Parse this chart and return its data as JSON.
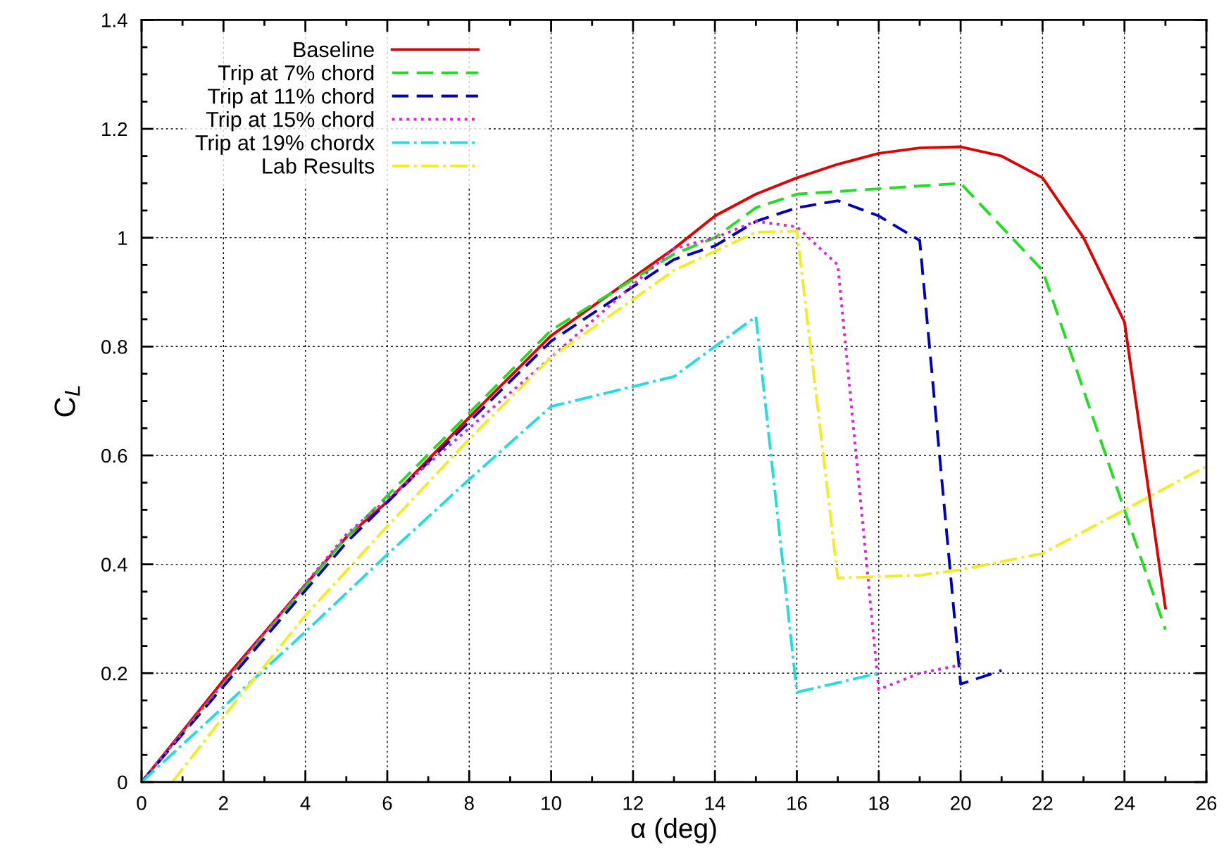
{
  "chart_data": {
    "type": "line",
    "xlabel": "α (deg)",
    "ylabel": "C$_{L}$",
    "xlim": [
      0,
      26
    ],
    "ylim": [
      0,
      1.4
    ],
    "xticks": [
      0,
      2,
      4,
      6,
      8,
      10,
      12,
      14,
      16,
      18,
      20,
      22,
      24,
      26
    ],
    "yticks": [
      0,
      0.2,
      0.4,
      0.6,
      0.8,
      1,
      1.2,
      1.4
    ],
    "grid": true,
    "legend": "top left",
    "marker": "none",
    "series": [
      {
        "name": "Baseline",
        "color": "#e00000",
        "line_style": "solid",
        "x": [
          0,
          2,
          5,
          6,
          8,
          10,
          13,
          14,
          15,
          16,
          17,
          18,
          19,
          20,
          21,
          22,
          23,
          24,
          25
        ],
        "values": [
          0,
          0.187,
          0.45,
          0.515,
          0.67,
          0.82,
          0.98,
          1.04,
          1.08,
          1.11,
          1.135,
          1.155,
          1.165,
          1.167,
          1.15,
          1.11,
          1.0,
          0.845,
          0.32
        ]
      },
      {
        "name": "Trip at 7% chord",
        "color": "#22dd22",
        "line_style": "dashed",
        "x": [
          0,
          5,
          10,
          13,
          14,
          15,
          16,
          20,
          22,
          24,
          25
        ],
        "values": [
          0,
          0.45,
          0.83,
          0.97,
          1.0,
          1.055,
          1.08,
          1.1,
          0.94,
          0.5,
          0.28
        ]
      },
      {
        "name": "Trip at 11% chord",
        "color": "#0000bb",
        "line_style": "dashed",
        "x": [
          0,
          5,
          10,
          13,
          14,
          15,
          16,
          17,
          18,
          19,
          20,
          21
        ],
        "values": [
          0,
          0.44,
          0.81,
          0.96,
          0.985,
          1.03,
          1.055,
          1.068,
          1.04,
          0.995,
          0.18,
          0.205
        ]
      },
      {
        "name": "Trip at 15% chord",
        "color": "#dd22dd",
        "line_style": "dotted",
        "x": [
          0,
          5,
          10,
          13,
          14,
          15,
          16,
          17,
          18,
          19,
          20
        ],
        "values": [
          0,
          0.455,
          0.78,
          0.98,
          1.0,
          1.03,
          1.02,
          0.95,
          0.17,
          0.2,
          0.215
        ]
      },
      {
        "name": "Trip at 19% chordx",
        "color": "#22dddd",
        "line_style": "dashdot",
        "x": [
          0,
          2,
          4,
          6,
          8,
          10,
          13,
          15,
          16,
          18
        ],
        "values": [
          0,
          0.138,
          0.276,
          0.418,
          0.556,
          0.69,
          0.745,
          0.855,
          0.165,
          0.2
        ]
      },
      {
        "name": "Lab Results",
        "color": "#eeee22",
        "line_style": "dashdot",
        "x": [
          0.75,
          2,
          4,
          6,
          8,
          10,
          13,
          15,
          16,
          17,
          19,
          20,
          21,
          22,
          26
        ],
        "values": [
          0,
          0.12,
          0.306,
          0.47,
          0.63,
          0.78,
          0.94,
          1.01,
          1.012,
          0.375,
          0.38,
          0.39,
          0.405,
          0.42,
          0.58
        ]
      }
    ]
  }
}
